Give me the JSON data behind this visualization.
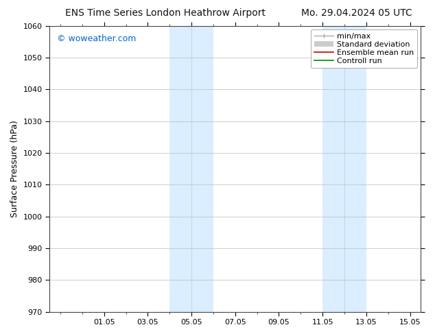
{
  "title_left": "ENS Time Series London Heathrow Airport",
  "title_right": "Mo. 29.04.2024 05 UTC",
  "ylabel": "Surface Pressure (hPa)",
  "ylim": [
    970,
    1060
  ],
  "yticks": [
    970,
    980,
    990,
    1000,
    1010,
    1020,
    1030,
    1040,
    1050,
    1060
  ],
  "xtick_labels": [
    "01.05",
    "03.05",
    "05.05",
    "07.05",
    "09.05",
    "11.05",
    "13.05",
    "15.05"
  ],
  "watermark": "© woweather.com",
  "watermark_color": "#0066cc",
  "bg_color": "#ffffff",
  "plot_bg_color": "#ffffff",
  "grid_color": "#bbbbbb",
  "shaded_color": "#daeeff",
  "shaded_divider_color": "#c0d8ee",
  "title_fontsize": 10,
  "axis_label_fontsize": 9,
  "tick_fontsize": 8,
  "legend_fontsize": 8,
  "watermark_fontsize": 9
}
